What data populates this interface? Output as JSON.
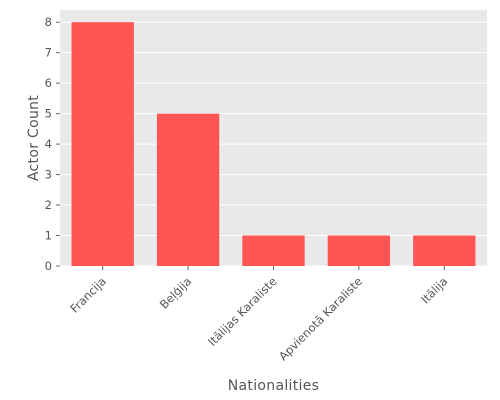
{
  "chart_data": {
    "type": "bar",
    "title": "",
    "xlabel": "Nationalities",
    "ylabel": "Actor Count",
    "categories": [
      "Francija",
      "Beļģija",
      "Itālijas Karaliste",
      "Apvienotā Karaliste",
      "Itālija"
    ],
    "values": [
      8,
      5,
      1,
      1,
      1
    ],
    "ylim": [
      0,
      8.4
    ],
    "yticks": [
      0,
      1,
      2,
      3,
      4,
      5,
      6,
      7,
      8
    ],
    "grid": true,
    "legend": "none",
    "colors": {
      "bar": "#ff5555",
      "background": "#e9e9e9",
      "grid": "#ffffff",
      "text": "#555555"
    }
  }
}
